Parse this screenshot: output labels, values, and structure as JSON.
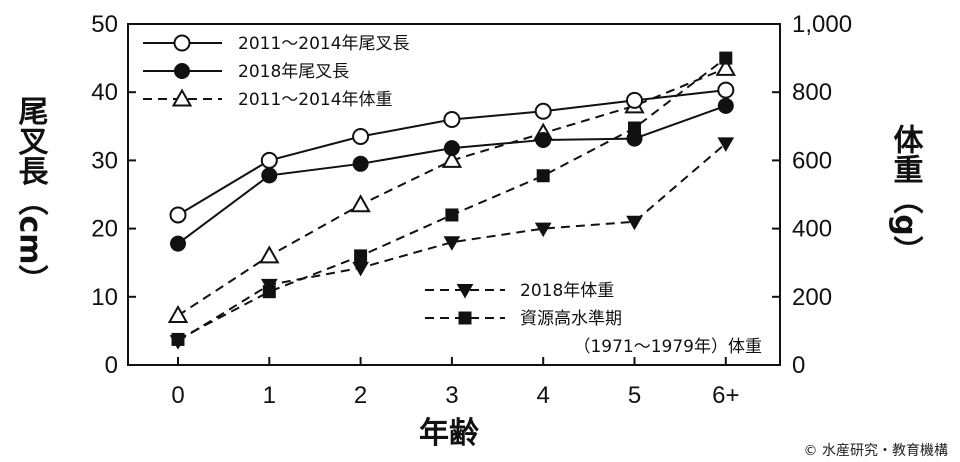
{
  "chart_data": {
    "type": "line",
    "categories": [
      "0",
      "1",
      "2",
      "3",
      "4",
      "5",
      "6+"
    ],
    "xlabel": "年齢",
    "ylabel_left": "尾叉長（cm）",
    "ylabel_right": "体重（g）",
    "ylim_left": [
      0,
      50
    ],
    "ylim_right": [
      0,
      1000
    ],
    "yticks_left": [
      "0",
      "10",
      "20",
      "30",
      "40",
      "50"
    ],
    "yticks_right": [
      "0",
      "200",
      "400",
      "600",
      "800",
      "1,000"
    ],
    "grid": false,
    "legend_placement": "top-left and bottom-right",
    "series": [
      {
        "name": "2011～2014年尾叉長",
        "axis": "left",
        "marker": "circle-open",
        "dash": false,
        "values": [
          22,
          30,
          33.5,
          36,
          37.2,
          38.8,
          40.3
        ]
      },
      {
        "name": "2018年尾叉長",
        "axis": "left",
        "marker": "circle-filled",
        "dash": false,
        "values": [
          17.8,
          27.8,
          29.5,
          31.8,
          33,
          33.2,
          38
        ]
      },
      {
        "name": "2011～2014年体重",
        "axis": "right",
        "marker": "triangle-open",
        "dash": true,
        "values": [
          145,
          320,
          470,
          600,
          680,
          760,
          870
        ]
      },
      {
        "name": "2018年体重",
        "axis": "right",
        "marker": "triangle-down-filled",
        "dash": true,
        "values": [
          70,
          235,
          285,
          360,
          400,
          420,
          650
        ]
      },
      {
        "name": "資源高水準期（1971～1979年）体重",
        "axis": "right",
        "marker": "square-filled",
        "dash": true,
        "values": [
          75,
          215,
          320,
          440,
          555,
          695,
          900
        ]
      }
    ],
    "legend_top": [
      "2011～2014年尾叉長",
      "2018年尾叉長",
      "2011～2014年体重"
    ],
    "legend_bottom": [
      "2018年体重",
      "資源高水準期",
      "（1971～1979年）体重"
    ]
  },
  "credit": "© 水産研究・教育機構"
}
